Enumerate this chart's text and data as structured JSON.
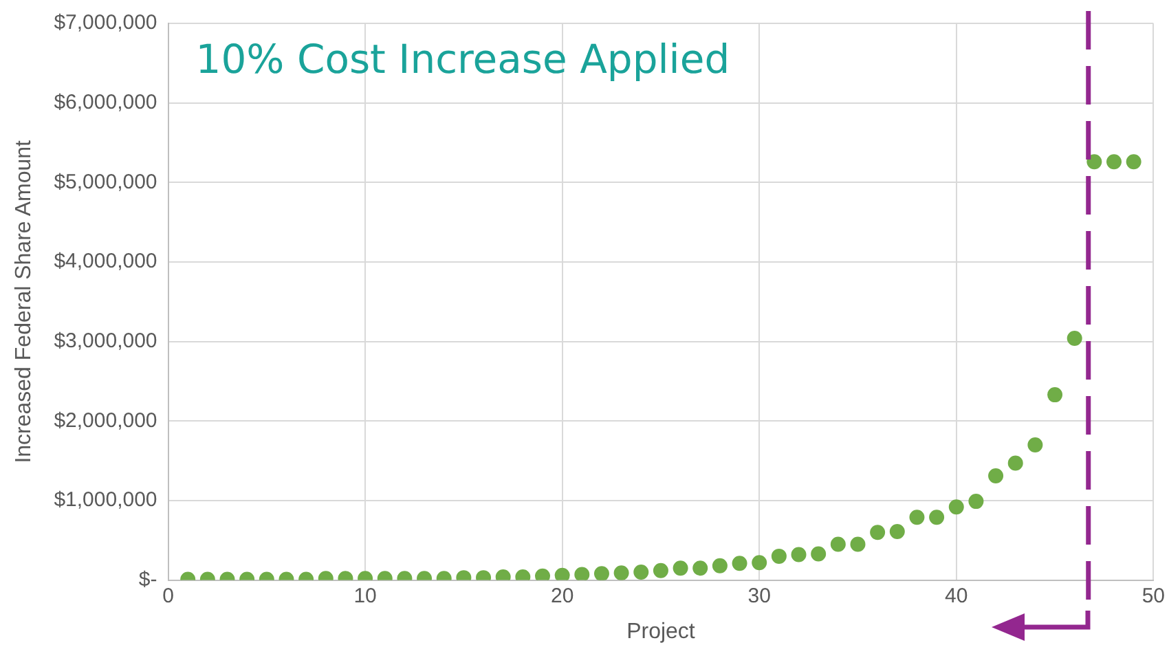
{
  "chart_data": {
    "type": "scatter",
    "xlabel": "Project",
    "ylabel": "Increased Federal Share Amount",
    "annotations": [
      "10% Cost Increase Applied"
    ],
    "x": [
      1,
      2,
      3,
      4,
      5,
      6,
      7,
      8,
      9,
      10,
      11,
      12,
      13,
      14,
      15,
      16,
      17,
      18,
      19,
      20,
      21,
      22,
      23,
      24,
      25,
      26,
      27,
      28,
      29,
      30,
      31,
      32,
      33,
      34,
      35,
      36,
      37,
      38,
      39,
      40,
      41,
      42,
      43,
      44,
      45,
      46,
      47,
      48,
      49
    ],
    "series": [
      {
        "color": "#70ad47",
        "values": [
          10000,
          10000,
          10000,
          10000,
          10000,
          10000,
          10000,
          20000,
          20000,
          20000,
          20000,
          20000,
          20000,
          20000,
          30000,
          30000,
          40000,
          40000,
          50000,
          60000,
          70000,
          80000,
          90000,
          100000,
          120000,
          150000,
          150000,
          180000,
          210000,
          220000,
          300000,
          320000,
          330000,
          450000,
          450000,
          600000,
          610000,
          790000,
          790000,
          920000,
          990000,
          1310000,
          1470000,
          1700000,
          2330000,
          3040000,
          5260000,
          5260000,
          5260000
        ]
      }
    ],
    "xlim": [
      0,
      50
    ],
    "xticks": [
      0,
      10,
      20,
      30,
      40,
      50
    ],
    "ylim": [
      0,
      7000000
    ],
    "yticks": [
      {
        "value": 0,
        "label": "$-"
      },
      {
        "value": 1000000,
        "label": "$1,000,000"
      },
      {
        "value": 2000000,
        "label": "$2,000,000"
      },
      {
        "value": 3000000,
        "label": "$3,000,000"
      },
      {
        "value": 4000000,
        "label": "$4,000,000"
      },
      {
        "value": 5000000,
        "label": "$5,000,000"
      },
      {
        "value": 6000000,
        "label": "$6,000,000"
      },
      {
        "value": 7000000,
        "label": "$7,000,000"
      }
    ],
    "ref_lines": [
      {
        "axis": "x",
        "value": 46.7,
        "color": "#93278f",
        "line_style": "dashed"
      }
    ],
    "grid": true,
    "legend": false,
    "marker": "circle"
  }
}
